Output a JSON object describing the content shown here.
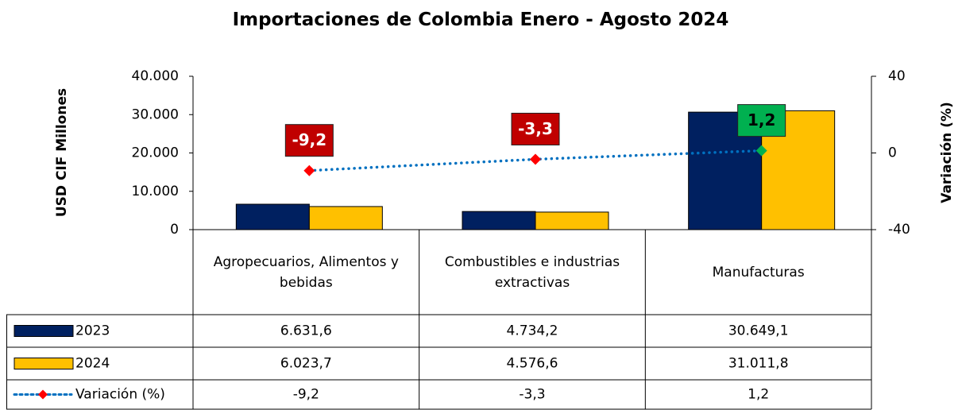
{
  "chart_data": {
    "type": "bar",
    "title": "Importaciones de Colombia Enero - Agosto 2024",
    "ylabel": "USD CIF Millones",
    "y2label": "Variación (%)",
    "categories": [
      "Agropecuarios, Alimentos y bebidas",
      "Combustibles e industrias extractivas",
      "Manufacturas"
    ],
    "series": [
      {
        "name": "2023",
        "color": "#002060",
        "values": [
          6631.6,
          4734.2,
          30649.1
        ],
        "value_labels": [
          "6.631,6",
          "4.734,2",
          "30.649,1"
        ]
      },
      {
        "name": "2024",
        "color": "#ffc000",
        "values": [
          6023.7,
          4576.6,
          31011.8
        ],
        "value_labels": [
          "6.023,7",
          "4.576,6",
          "31.011,8"
        ]
      },
      {
        "name": "Variación (%)",
        "type": "line",
        "axis": "y2",
        "color": "#0070c0",
        "values": [
          -9.2,
          -3.3,
          1.2
        ],
        "value_labels": [
          "-9,2",
          "-3,3",
          "1,2"
        ],
        "marker_colors": [
          "#ff0000",
          "#ff0000",
          "#00b050"
        ],
        "label_colors": [
          "#c00000",
          "#c00000",
          "#00b050"
        ]
      }
    ],
    "ylim": [
      0,
      40000
    ],
    "yticks": [
      0,
      {
        "value": 10000,
        "label": "10.000"
      },
      {
        "value": 20000,
        "label": "20.000"
      },
      {
        "value": 30000,
        "label": "30.000"
      },
      {
        "value": 40000,
        "label": "40.000"
      }
    ],
    "y2lim": [
      -40,
      40
    ],
    "y2ticks": [
      -40,
      0,
      40
    ]
  }
}
